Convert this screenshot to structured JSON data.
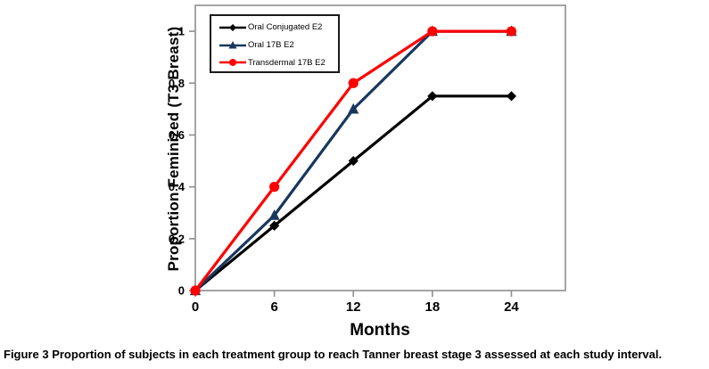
{
  "figure": {
    "caption_prefix": "Figure 3",
    "caption_text": "Proportion of subjects in each treatment group to reach Tanner breast stage 3 assessed at each study interval."
  },
  "chart_data": {
    "type": "line",
    "title": "",
    "xlabel": "Months",
    "ylabel": "Proportion Feminized (T3 Breast)",
    "x": [
      0,
      6,
      12,
      18,
      24
    ],
    "xtick_labels": [
      "0",
      "6",
      "12",
      "18",
      "24"
    ],
    "ytick_labels": [
      "0",
      "0.2",
      "0.4",
      "0.6",
      "0.8",
      "1"
    ],
    "yticks": [
      0,
      0.2,
      0.4,
      0.6,
      0.8,
      1
    ],
    "xlim": [
      0,
      28.1
    ],
    "ylim": [
      0,
      1.1
    ],
    "grid": false,
    "legend_position": "top-left-inside",
    "axis_color": "#8E8E8E",
    "series": [
      {
        "name": "Oral Conjugated E2",
        "color": "#000000",
        "marker": "diamond",
        "values": [
          0,
          0.25,
          0.5,
          0.75,
          0.75
        ]
      },
      {
        "name": "Oral 17B E2",
        "color": "#17375E",
        "marker": "triangle",
        "values": [
          0,
          0.29,
          0.7,
          1,
          1
        ]
      },
      {
        "name": "Transdermal 17B E2",
        "color": "#FF0000",
        "marker": "circle",
        "values": [
          0,
          0.4,
          0.8,
          1,
          1
        ]
      }
    ]
  }
}
